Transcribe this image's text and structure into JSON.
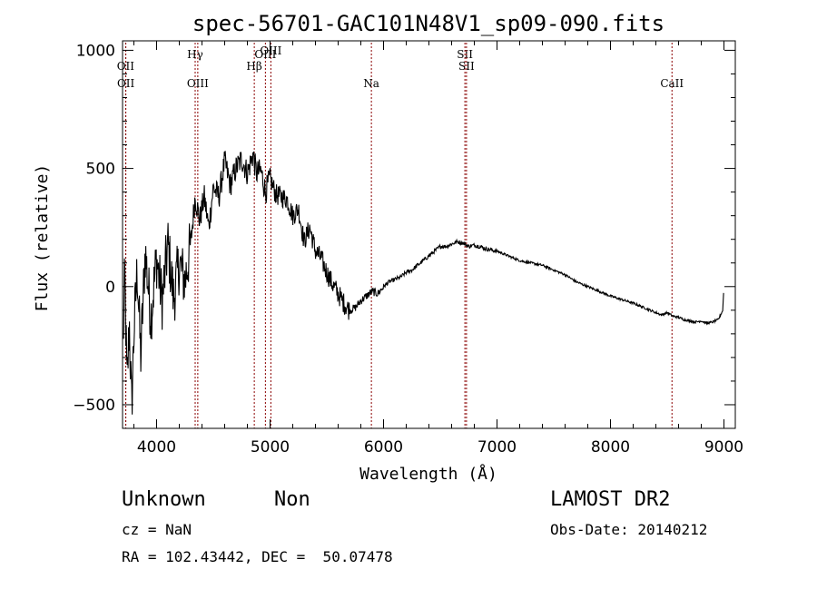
{
  "chart_data": {
    "type": "line",
    "title": "spec-56701-GAC101N48V1_sp09-090.fits",
    "xlabel": "Wavelength (Å)",
    "ylabel": "Flux (relative)",
    "xlim": [
      3700,
      9100
    ],
    "ylim": [
      -600,
      1040
    ],
    "x_ticks": [
      {
        "value": 4000,
        "label": "4000"
      },
      {
        "value": 5000,
        "label": "5000"
      },
      {
        "value": 6000,
        "label": "6000"
      },
      {
        "value": 7000,
        "label": "7000"
      },
      {
        "value": 8000,
        "label": "8000"
      },
      {
        "value": 9000,
        "label": "9000"
      }
    ],
    "y_ticks": [
      {
        "value": 1000,
        "label": "1000"
      },
      {
        "value": 500,
        "label": "500"
      },
      {
        "value": 0,
        "label": "0"
      },
      {
        "value": -500,
        "label": "−500"
      }
    ],
    "line_color": "#000000",
    "marker_color": "#8b0000",
    "series": [
      {
        "x": [
          3705,
          3720,
          3740,
          3760,
          3780,
          3800,
          3830,
          3860,
          3900,
          3950,
          4000,
          4050,
          4100,
          4150,
          4200,
          4250,
          4300,
          4340,
          4380,
          4420,
          4460,
          4500,
          4550,
          4600,
          4650,
          4700,
          4750,
          4800,
          4850,
          4880,
          4920,
          4960,
          5000,
          5050,
          5100,
          5150,
          5200,
          5250,
          5300,
          5350,
          5400,
          5450,
          5500,
          5550,
          5600,
          5650,
          5700,
          5750,
          5800,
          5850,
          5900,
          5950,
          6000,
          6050,
          6100,
          6150,
          6200,
          6250,
          6300,
          6350,
          6400,
          6450,
          6500,
          6550,
          6600,
          6650,
          6700,
          6750,
          6800,
          6850,
          6900,
          7000,
          7100,
          7200,
          7300,
          7400,
          7500,
          7600,
          7700,
          7800,
          7900,
          8000,
          8100,
          8200,
          8250,
          8300,
          8350,
          8400,
          8450,
          8500,
          8550,
          8600,
          8650,
          8700,
          8750,
          8800,
          8850,
          8900,
          8950,
          8990,
          9000
        ],
        "y": [
          -250,
          50,
          -430,
          -150,
          -520,
          -200,
          80,
          -300,
          150,
          -130,
          120,
          -60,
          180,
          -50,
          100,
          20,
          180,
          380,
          280,
          380,
          250,
          420,
          380,
          530,
          430,
          500,
          540,
          480,
          560,
          480,
          490,
          400,
          460,
          390,
          380,
          370,
          300,
          330,
          190,
          250,
          150,
          120,
          60,
          10,
          -30,
          -70,
          -100,
          -90,
          -60,
          -40,
          -20,
          -30,
          0,
          20,
          30,
          40,
          60,
          70,
          90,
          110,
          130,
          150,
          170,
          170,
          180,
          190,
          185,
          170,
          175,
          170,
          160,
          150,
          130,
          110,
          100,
          90,
          70,
          50,
          20,
          0,
          -20,
          -40,
          -55,
          -70,
          -80,
          -90,
          -100,
          -110,
          -120,
          -110,
          -125,
          -130,
          -140,
          -145,
          -150,
          -145,
          -155,
          -150,
          -140,
          -100,
          10
        ]
      }
    ],
    "line_markers": [
      {
        "label": "OII",
        "wavelength": 3727,
        "row": 2
      },
      {
        "label": "OII",
        "wavelength": 3729,
        "row": 3
      },
      {
        "label": "Hγ",
        "wavelength": 4340,
        "row": 1
      },
      {
        "label": "OIII",
        "wavelength": 4363,
        "row": 3
      },
      {
        "label": "Hβ",
        "wavelength": 4861,
        "row": 2
      },
      {
        "label": "OIII",
        "wavelength": 4959,
        "row": 1
      },
      {
        "label": "OIII",
        "wavelength": 5007,
        "row": 0
      },
      {
        "label": "Na",
        "wavelength": 5893,
        "row": 3
      },
      {
        "label": "SII",
        "wavelength": 6717,
        "row": 1
      },
      {
        "label": "SII",
        "wavelength": 6731,
        "row": 2
      },
      {
        "label": "CaII",
        "wavelength": 8542,
        "row": 3
      }
    ]
  },
  "info": {
    "object_class": "Unknown",
    "object_subclass": "Non",
    "survey": "LAMOST DR2",
    "redshift_text": "cz = NaN",
    "obs_date_text": "Obs-Date: 20140212",
    "coords_text": "RA = 102.43442, DEC =  50.07478"
  }
}
